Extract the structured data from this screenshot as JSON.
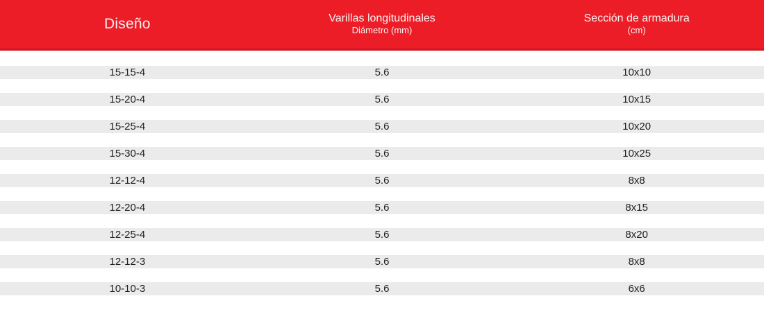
{
  "header": {
    "columns": [
      {
        "title": "Diseño",
        "subtitle": ""
      },
      {
        "title": "Varillas longitudinales",
        "subtitle": "Diámetro (mm)"
      },
      {
        "title": "Sección de armadura",
        "subtitle": "(cm)"
      }
    ]
  },
  "chart_data": {
    "type": "table",
    "columns": [
      "Diseño",
      "Varillas longitudinales — Diámetro (mm)",
      "Sección de armadura (cm)"
    ],
    "rows": [
      [
        "15-15-4",
        "5.6",
        "10x10"
      ],
      [
        "15-20-4",
        "5.6",
        "10x15"
      ],
      [
        "15-25-4",
        "5.6",
        "10x20"
      ],
      [
        "15-30-4",
        "5.6",
        "10x25"
      ],
      [
        "12-12-4",
        "5.6",
        "8x8"
      ],
      [
        "12-20-4",
        "5.6",
        "8x15"
      ],
      [
        "12-25-4",
        "5.6",
        "8x20"
      ],
      [
        "12-12-3",
        "5.6",
        "8x8"
      ],
      [
        "10-10-3",
        "5.6",
        "6x6"
      ]
    ]
  },
  "colors": {
    "header_background": "#ED1D28",
    "header_border": "#CE1720",
    "header_text": "#FAF3F2",
    "row_band": "#EBEBEB",
    "row_text": "#1E1E1E",
    "page_background": "#FFFFFF"
  }
}
